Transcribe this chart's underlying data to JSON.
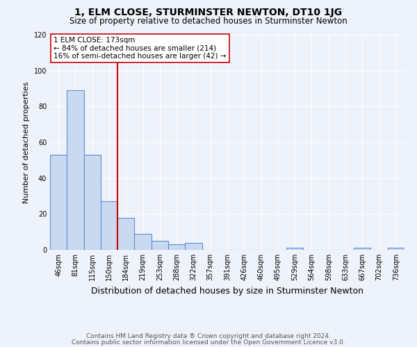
{
  "title": "1, ELM CLOSE, STURMINSTER NEWTON, DT10 1JG",
  "subtitle": "Size of property relative to detached houses in Sturminster Newton",
  "xlabel": "Distribution of detached houses by size in Sturminster Newton",
  "ylabel": "Number of detached properties",
  "footnote1": "Contains HM Land Registry data ® Crown copyright and database right 2024.",
  "footnote2": "Contains public sector information licensed under the Open Government Licence v3.0.",
  "bin_labels": [
    "46sqm",
    "81sqm",
    "115sqm",
    "150sqm",
    "184sqm",
    "219sqm",
    "253sqm",
    "288sqm",
    "322sqm",
    "357sqm",
    "391sqm",
    "426sqm",
    "460sqm",
    "495sqm",
    "529sqm",
    "564sqm",
    "598sqm",
    "633sqm",
    "667sqm",
    "702sqm",
    "736sqm"
  ],
  "bar_heights": [
    53,
    89,
    53,
    27,
    18,
    9,
    5,
    3,
    4,
    0,
    0,
    0,
    0,
    0,
    1,
    0,
    0,
    0,
    1,
    0,
    1
  ],
  "bar_color": "#c9d9f0",
  "bar_edge_color": "#5b8fd4",
  "red_line_index": 4,
  "red_line_color": "#cc0000",
  "annotation_text": "1 ELM CLOSE: 173sqm\n← 84% of detached houses are smaller (214)\n16% of semi-detached houses are larger (42) →",
  "annotation_box_color": "white",
  "annotation_box_edge": "#cc0000",
  "ylim": [
    0,
    120
  ],
  "yticks": [
    0,
    20,
    40,
    60,
    80,
    100,
    120
  ],
  "background_color": "#eef2fb",
  "grid_color": "white",
  "title_fontsize": 10,
  "subtitle_fontsize": 8.5,
  "xlabel_fontsize": 9,
  "ylabel_fontsize": 8,
  "tick_fontsize": 7,
  "annotation_fontsize": 7.5,
  "footnote_fontsize": 6.5
}
